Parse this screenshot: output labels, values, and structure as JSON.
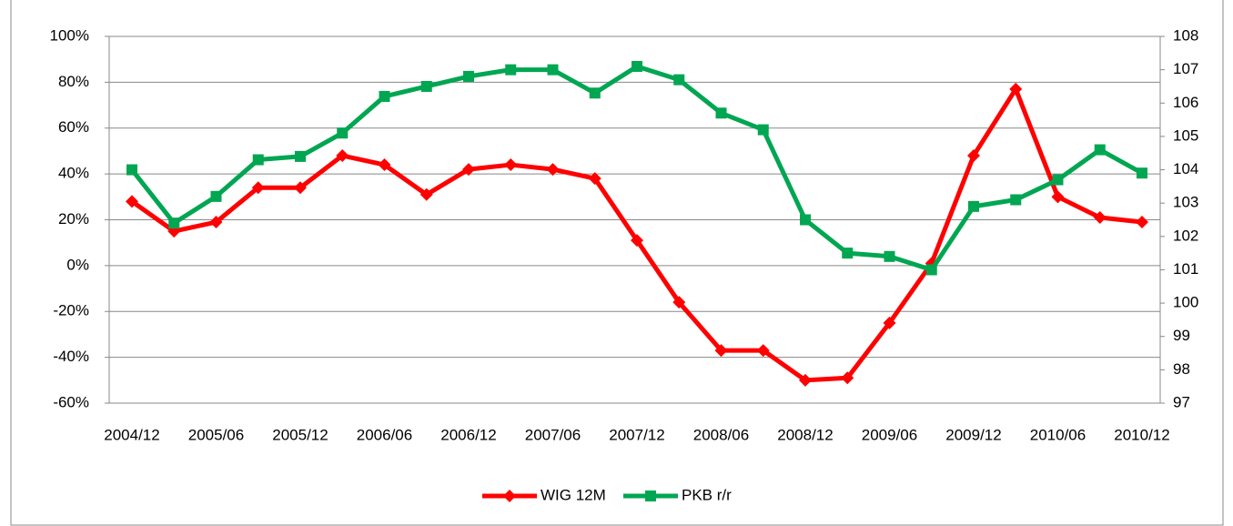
{
  "chart_data": {
    "type": "line",
    "categories": [
      "2004/12",
      null,
      "2005/06",
      null,
      "2005/12",
      null,
      "2006/06",
      null,
      "2006/12",
      null,
      "2007/06",
      null,
      "2007/12",
      null,
      "2008/06",
      null,
      "2008/12",
      null,
      "2009/06",
      null,
      "2009/12",
      null,
      "2010/06",
      null,
      "2010/12"
    ],
    "series": [
      {
        "name": "WIG 12M",
        "color": "#ff0000",
        "marker": "diamond",
        "values": [
          28,
          15,
          19,
          34,
          34,
          48,
          44,
          31,
          42,
          44,
          42,
          38,
          11,
          -16,
          -37,
          -37,
          -50,
          -49,
          -25,
          1,
          48,
          77,
          30,
          21,
          19
        ]
      },
      {
        "name": "PKB r/r",
        "color": "#00a651",
        "marker": "square",
        "axis": "y2",
        "values": [
          104.0,
          102.4,
          103.2,
          104.3,
          104.4,
          105.1,
          106.2,
          106.5,
          106.8,
          107.0,
          107.0,
          106.3,
          107.1,
          106.7,
          105.7,
          105.2,
          102.5,
          101.5,
          101.4,
          101.0,
          102.9,
          103.1,
          103.7,
          104.6,
          103.9
        ]
      }
    ],
    "ylim": [
      -60,
      100
    ],
    "yticks": [
      {
        "value": -60,
        "label": "-60%"
      },
      {
        "value": -40,
        "label": "-40%"
      },
      {
        "value": -20,
        "label": "-20%"
      },
      {
        "value": 0,
        "label": "0%"
      },
      {
        "value": 20,
        "label": "20%"
      },
      {
        "value": 40,
        "label": "40%"
      },
      {
        "value": 60,
        "label": "60%"
      },
      {
        "value": 80,
        "label": "80%"
      },
      {
        "value": 100,
        "label": "100%"
      }
    ],
    "y2lim": [
      97,
      108
    ],
    "y2ticks": [
      97,
      98,
      99,
      100,
      101,
      102,
      103,
      104,
      105,
      106,
      107,
      108
    ],
    "grid": true,
    "legend": "bottom"
  }
}
